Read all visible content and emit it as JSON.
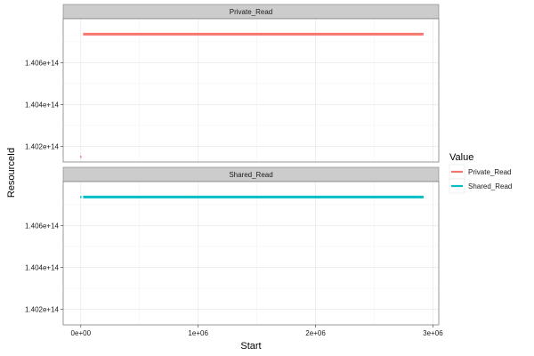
{
  "chart_data": {
    "type": "line",
    "facet_by": "Value",
    "panels": [
      {
        "strip_label": "Private_Read",
        "series_name": "Private_Read",
        "color": "#F8766D",
        "segments": [
          {
            "x": [
              20000,
              2920000
            ],
            "y": [
              140736000000000,
              140736000000000
            ]
          },
          {
            "x": [
              0,
              0
            ],
            "y": [
              140150000000000,
              140150000000000
            ]
          }
        ]
      },
      {
        "strip_label": "Shared_Read",
        "series_name": "Shared_Read",
        "color": "#00BFC4",
        "segments": [
          {
            "x": [
              20000,
              2920000
            ],
            "y": [
              140736000000000,
              140736000000000
            ]
          },
          {
            "x": [
              0,
              0
            ],
            "y": [
              140736000000000,
              140736000000000
            ]
          }
        ]
      }
    ],
    "x_ticks": [
      {
        "value": 0,
        "label": "0e+00"
      },
      {
        "value": 1000000,
        "label": "1e+06"
      },
      {
        "value": 2000000,
        "label": "2e+06"
      },
      {
        "value": 3000000,
        "label": "3e+06"
      }
    ],
    "y_ticks": [
      {
        "value": 140200000000000,
        "label": "1.402e+14"
      },
      {
        "value": 140400000000000,
        "label": "1.404e+14"
      },
      {
        "value": 140600000000000,
        "label": "1.406e+14"
      }
    ],
    "xlim": [
      -150000,
      3050000
    ],
    "ylim": [
      140125000000000,
      140810000000000
    ],
    "xlabel": "Start",
    "ylabel": "ResourceId",
    "legend": {
      "title": "Value",
      "position": "right",
      "entries": [
        {
          "label": "Private_Read",
          "color": "#F8766D"
        },
        {
          "label": "Shared_Read",
          "color": "#00BFC4"
        }
      ]
    },
    "grid": true,
    "theme": "bw"
  }
}
